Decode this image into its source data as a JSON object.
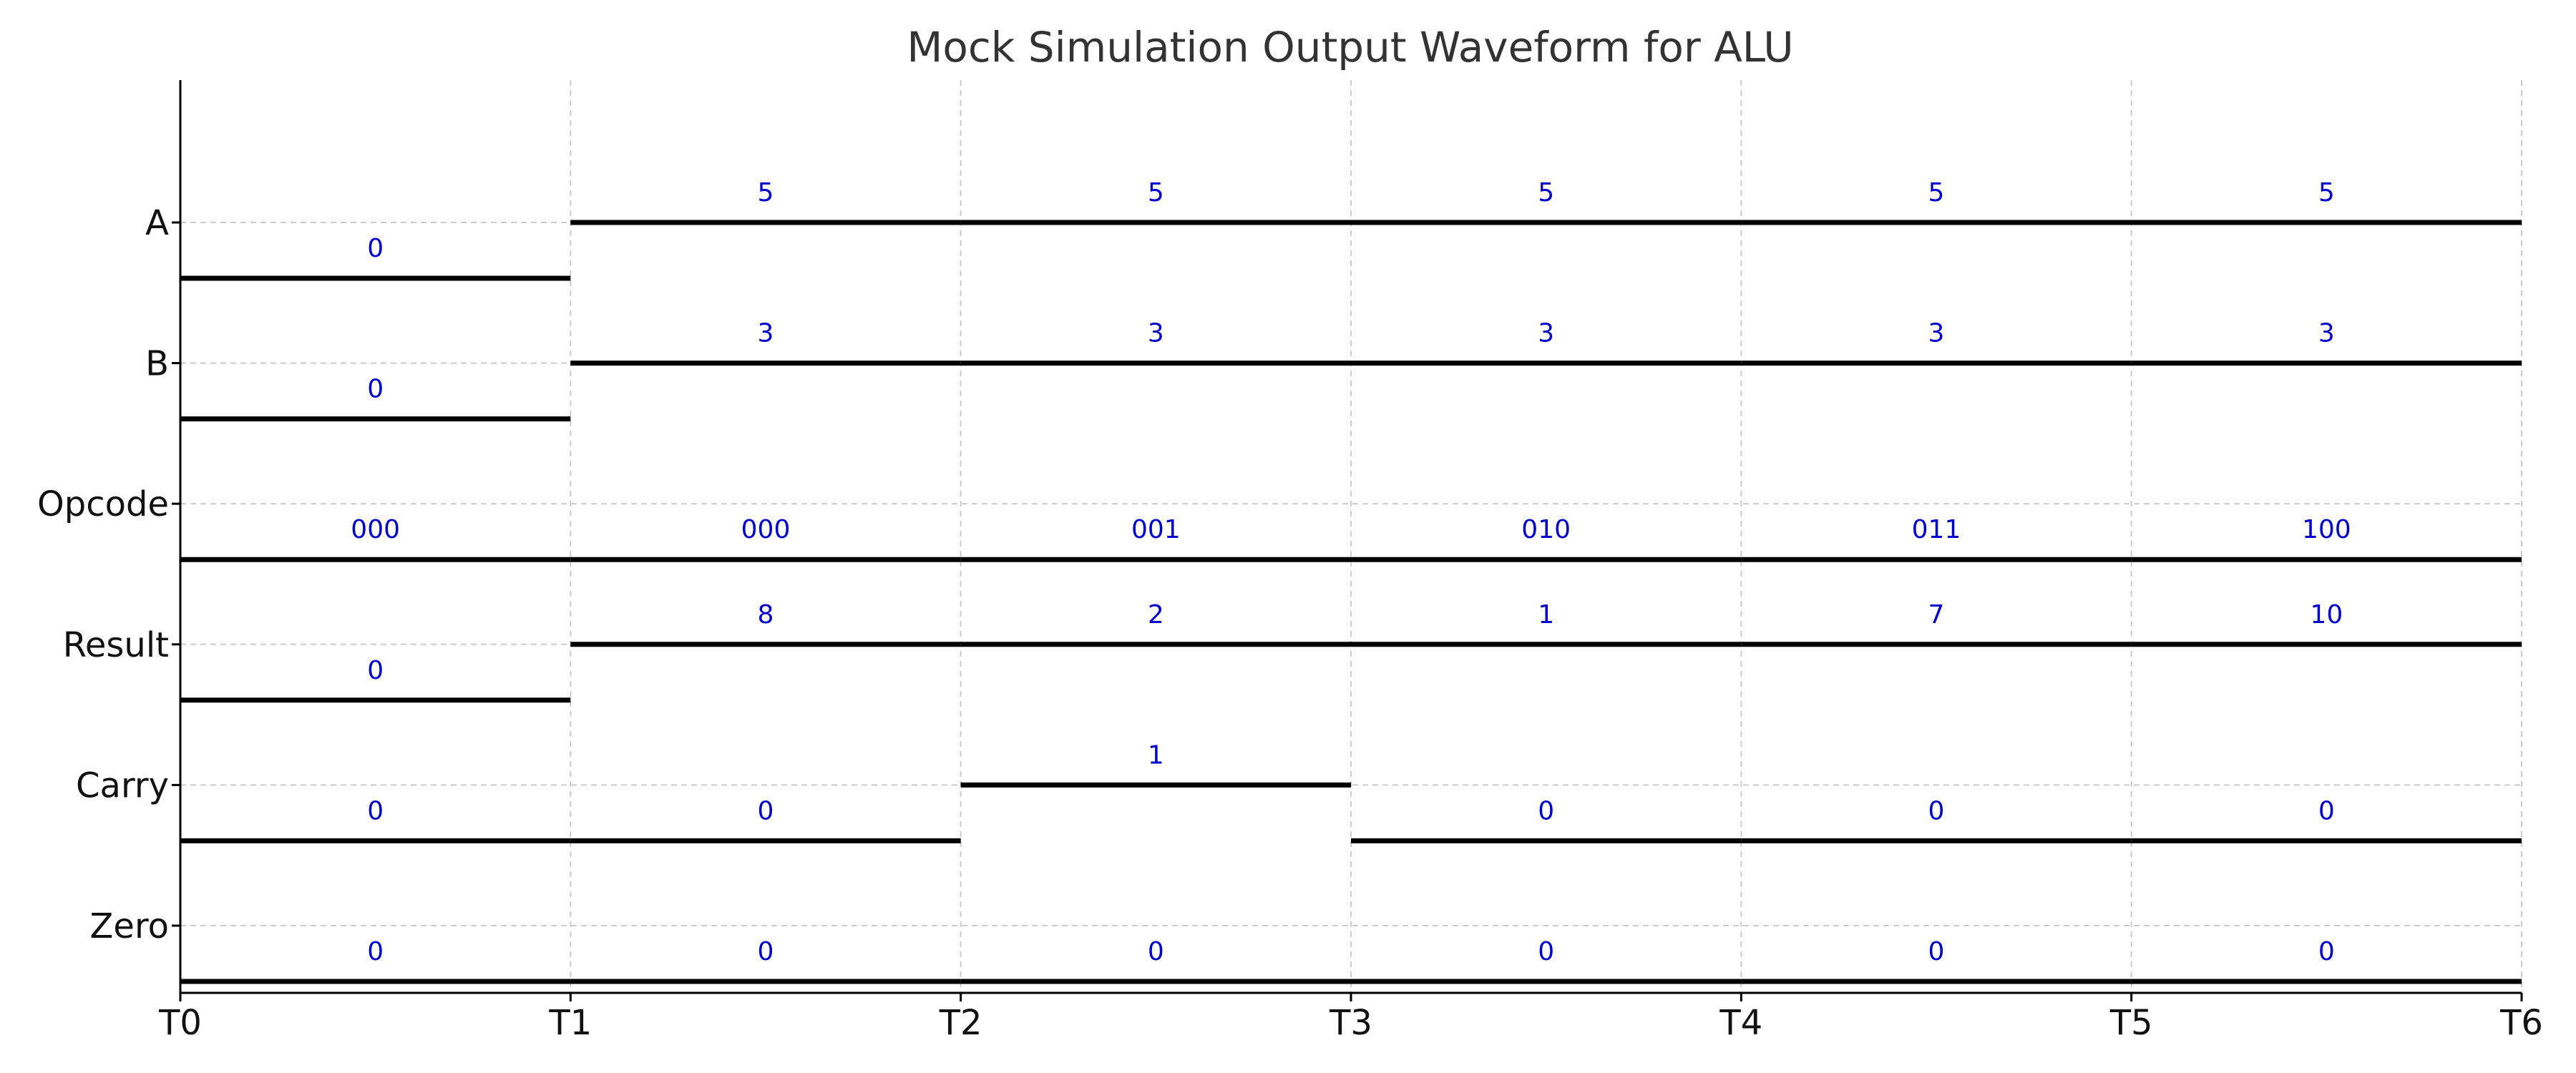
{
  "chart_data": {
    "type": "waveform",
    "title": "Mock Simulation Output Waveform for ALU",
    "x_ticks": [
      "T0",
      "T1",
      "T2",
      "T3",
      "T4",
      "T5",
      "T6"
    ],
    "x_range": [
      0,
      6
    ],
    "grid": true,
    "line_color": "#000000",
    "value_label_color": "#0000cc",
    "grid_color": "#cccccc",
    "signals": [
      {
        "name": "A",
        "levels": [
          0,
          1,
          1,
          1,
          1,
          1
        ],
        "values": [
          "0",
          "5",
          "5",
          "5",
          "5",
          "5"
        ]
      },
      {
        "name": "B",
        "levels": [
          0,
          1,
          1,
          1,
          1,
          1
        ],
        "values": [
          "0",
          "3",
          "3",
          "3",
          "3",
          "3"
        ]
      },
      {
        "name": "Opcode",
        "levels": [
          0,
          0,
          0,
          0,
          0,
          0
        ],
        "values": [
          "000",
          "000",
          "001",
          "010",
          "011",
          "100"
        ]
      },
      {
        "name": "Result",
        "levels": [
          0,
          1,
          1,
          1,
          1,
          1
        ],
        "values": [
          "0",
          "8",
          "2",
          "1",
          "7",
          "10"
        ]
      },
      {
        "name": "Carry",
        "levels": [
          0,
          0,
          1,
          0,
          0,
          0
        ],
        "values": [
          "0",
          "0",
          "1",
          "0",
          "0",
          "0"
        ]
      },
      {
        "name": "Zero",
        "levels": [
          0,
          0,
          0,
          0,
          0,
          0
        ],
        "values": [
          "0",
          "0",
          "0",
          "0",
          "0",
          "0"
        ]
      }
    ]
  }
}
